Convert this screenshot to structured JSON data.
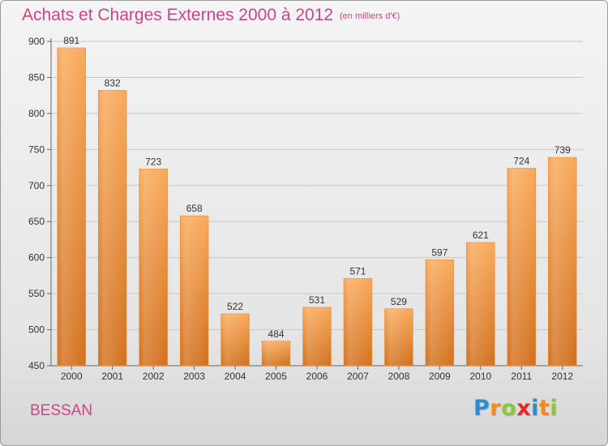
{
  "title": "Achats et Charges Externes 2000 à 2012",
  "subtitle": "(en milliers d'€)",
  "commune": "BESSAN",
  "logo": {
    "letters": [
      {
        "ch": "P",
        "color": "#2a8fd0"
      },
      {
        "ch": "r",
        "color": "#f08a1c"
      },
      {
        "ch": "o",
        "color": "#8cc63f"
      },
      {
        "ch": "x",
        "color": "#e8262e"
      },
      {
        "ch": "i",
        "color": "#2a8fd0"
      },
      {
        "ch": "t",
        "color": "#f08a1c"
      },
      {
        "ch": "i",
        "color": "#8cc63f"
      }
    ]
  },
  "colors": {
    "title": "#cc4488",
    "bar_light": "#f9a95a",
    "bar_dark": "#d2701d",
    "grid": "#c8c8c8"
  },
  "chart_data": {
    "type": "bar",
    "title": "Achats et Charges Externes 2000 à 2012",
    "subtitle": "(en milliers d'€)",
    "categories": [
      "2000",
      "2001",
      "2002",
      "2003",
      "2004",
      "2005",
      "2006",
      "2007",
      "2008",
      "2009",
      "2010",
      "2011",
      "2012"
    ],
    "values": [
      891,
      832,
      723,
      658,
      522,
      484,
      531,
      571,
      529,
      597,
      621,
      724,
      739
    ],
    "ylim": [
      450,
      900
    ],
    "yticks": [
      450,
      500,
      550,
      600,
      650,
      700,
      750,
      800,
      850,
      900
    ],
    "grid": true,
    "legend": "none"
  }
}
